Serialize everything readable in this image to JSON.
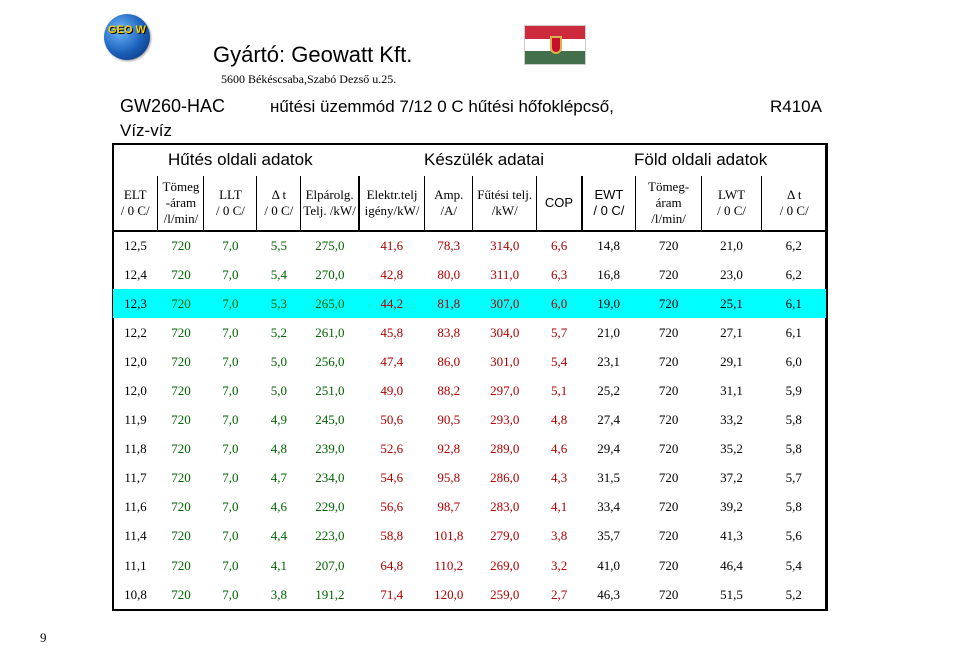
{
  "header": {
    "logo_text": "GEO W",
    "manufacturer": "Gyártó: Geowatt Kft.",
    "address": "5600 Békéscsaba,Szabó Dezső u.25.",
    "model": "GW260-HAC",
    "mode": "нűtési üzemmód  7/12 0 C hűtési hőfoklépcső,",
    "refrigerant": "R410A",
    "type": "Víz-víz"
  },
  "flag_colors": [
    "#cd2a3e",
    "#ffffff",
    "#436f4d"
  ],
  "sections": {
    "left": "Hűtés oldali adatok",
    "middle": "Készülék adatai",
    "right": "Föld oldali adatok"
  },
  "columns": [
    {
      "l1": "ELT",
      "l2": "/ 0 C/"
    },
    {
      "l1": "Tömeg",
      "l2": "-áram",
      "l3": "/l/min/"
    },
    {
      "l1": "LLT",
      "l2": "/ 0 C/"
    },
    {
      "l1": "Δ t",
      "l2": "/ 0 C/"
    },
    {
      "l1": "Elpárolg.",
      "l2": "Telj. /kW/"
    },
    {
      "l1": "Elektr.telj",
      "l2": "igény/kW/"
    },
    {
      "l1": "Amp.",
      "l2": "/A/"
    },
    {
      "l1": "Fűtési telj.",
      "l2": "/kW/"
    },
    {
      "l1": "COP"
    },
    {
      "l1": "EWT",
      "l2": "/ 0 C/"
    },
    {
      "l1": "Tömeg-",
      "l2": "áram",
      "l3": "/l/min/"
    },
    {
      "l1": "LWT",
      "l2": "/ 0 C/"
    },
    {
      "l1": "Δ t",
      "l2": "/ 0 C/"
    }
  ],
  "rows": [
    [
      "12,5",
      "720",
      "7,0",
      "5,5",
      "275,0",
      "41,6",
      "78,3",
      "314,0",
      "6,6",
      "14,8",
      "720",
      "21,0",
      "6,2"
    ],
    [
      "12,4",
      "720",
      "7,0",
      "5,4",
      "270,0",
      "42,8",
      "80,0",
      "311,0",
      "6,3",
      "16,8",
      "720",
      "23,0",
      "6,2"
    ],
    [
      "12,3",
      "720",
      "7,0",
      "5,3",
      "265,0",
      "44,2",
      "81,8",
      "307,0",
      "6,0",
      "19,0",
      "720",
      "25,1",
      "6,1"
    ],
    [
      "12,2",
      "720",
      "7,0",
      "5,2",
      "261,0",
      "45,8",
      "83,8",
      "304,0",
      "5,7",
      "21,0",
      "720",
      "27,1",
      "6,1"
    ],
    [
      "12,0",
      "720",
      "7,0",
      "5,0",
      "256,0",
      "47,4",
      "86,0",
      "301,0",
      "5,4",
      "23,1",
      "720",
      "29,1",
      "6,0"
    ],
    [
      "12,0",
      "720",
      "7,0",
      "5,0",
      "251,0",
      "49,0",
      "88,2",
      "297,0",
      "5,1",
      "25,2",
      "720",
      "31,1",
      "5,9"
    ],
    [
      "11,9",
      "720",
      "7,0",
      "4,9",
      "245,0",
      "50,6",
      "90,5",
      "293,0",
      "4,8",
      "27,4",
      "720",
      "33,2",
      "5,8"
    ],
    [
      "11,8",
      "720",
      "7,0",
      "4,8",
      "239,0",
      "52,6",
      "92,8",
      "289,0",
      "4,6",
      "29,4",
      "720",
      "35,2",
      "5,8"
    ],
    [
      "11,7",
      "720",
      "7,0",
      "4,7",
      "234,0",
      "54,6",
      "95,8",
      "286,0",
      "4,3",
      "31,5",
      "720",
      "37,2",
      "5,7"
    ],
    [
      "11,6",
      "720",
      "7,0",
      "4,6",
      "229,0",
      "56,6",
      "98,7",
      "283,0",
      "4,1",
      "33,4",
      "720",
      "39,2",
      "5,8"
    ],
    [
      "11,4",
      "720",
      "7,0",
      "4,4",
      "223,0",
      "58,8",
      "101,8",
      "279,0",
      "3,8",
      "35,7",
      "720",
      "41,3",
      "5,6"
    ],
    [
      "11,1",
      "720",
      "7,0",
      "4,1",
      "207,0",
      "64,8",
      "110,2",
      "269,0",
      "3,2",
      "41,0",
      "720",
      "46,4",
      "5,4"
    ],
    [
      "10,8",
      "720",
      "7,0",
      "3,8",
      "191,2",
      "71,4",
      "120,0",
      "259,0",
      "2,7",
      "46,3",
      "720",
      "51,5",
      "5,2"
    ]
  ],
  "highlight_row": 2,
  "highlight_color": "#00ffff",
  "page_number": "9"
}
